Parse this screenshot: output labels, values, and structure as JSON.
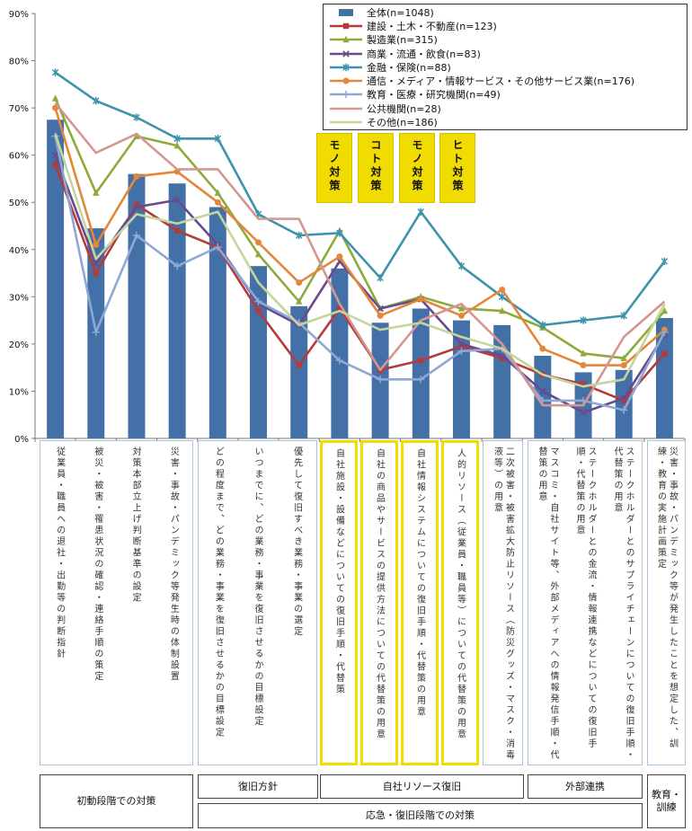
{
  "chart_data": {
    "type": "bar",
    "title": "",
    "xlabel": "",
    "ylabel": "",
    "ylim": [
      0,
      90
    ],
    "yticks": [
      "0%",
      "10%",
      "20%",
      "30%",
      "40%",
      "50%",
      "60%",
      "70%",
      "80%",
      "90%"
    ],
    "grid": false,
    "legend_position": "top-right",
    "categories": [
      "災害・事故・パンデミック等発生時の体制設置",
      "対策本部立上げ判断基準の設定",
      "被災・被害・罹患状況の確認・連絡手順の策定",
      "従業員・職員への退社・出勤等の判断指針",
      "優先して復旧すべき業務・事業の選定",
      "いつまでに、どの業務・事業を復旧させるかの目標設定",
      "どの程度まで、どの業務・事業を復旧させるかの目標設定",
      "自社施設・設備などについての復旧手順・代替策",
      "自社の商品やサービスの提供方法についての代替策の用意",
      "自社情報システムについての復旧手順・代替策の用意",
      "人的リソース（従業員・職員等）についての代替策の用意",
      "二次被害・被害拡大防止リソース（防災グッズ・マスク・消毒液等）の用意",
      "ステークホルダーとのサプライチェーンについての復旧手順・代替策の用意",
      "ステークホルダーとの金流・情報連携などについての復旧手順・代替策の用意",
      "マスコミ・自社サイト等、外部メディアへの情報発信手順・代替策の用意",
      "災害・事故・パンデミック等が発生したことを想定した、訓練・教育の実施計画策定"
    ],
    "series": [
      {
        "name": "全体(n=1048)",
        "type": "bar",
        "color": "#4470a8",
        "values": [
          67.5,
          44.5,
          56,
          54,
          49,
          36.5,
          28,
          36,
          24.5,
          27.5,
          25,
          24,
          17.5,
          14,
          14.5,
          25.5
        ]
      },
      {
        "name": "建設・土木・不動産(n=123)",
        "color": "#b23c3c",
        "marker": "square",
        "values": [
          58,
          35,
          49.5,
          44,
          40.5,
          27,
          15.5,
          27.5,
          14.5,
          16.5,
          19.5,
          17,
          13.5,
          11.5,
          8,
          18
        ]
      },
      {
        "name": "製造業(n=315)",
        "color": "#8faa3c",
        "marker": "triangle",
        "values": [
          72,
          52,
          64,
          62,
          52,
          39,
          29,
          44,
          27.5,
          30,
          27.5,
          27,
          23.5,
          18,
          17,
          27
        ]
      },
      {
        "name": "商業・流通・飲食(n=83)",
        "color": "#6a4a8c",
        "marker": "x",
        "values": [
          60,
          37,
          49,
          50.5,
          41,
          28.5,
          24,
          37.5,
          27.5,
          29.5,
          20,
          17.5,
          10,
          5.5,
          8.5,
          22
        ]
      },
      {
        "name": "金融・保険(n=88)",
        "color": "#3c93ab",
        "marker": "star",
        "values": [
          77.5,
          71.5,
          68,
          63.5,
          63.5,
          47.5,
          43,
          43.5,
          34,
          48,
          36.5,
          30,
          24,
          25,
          26,
          37.5
        ]
      },
      {
        "name": "通信・メディア・情報サービス・その他サービス業(n=176)",
        "color": "#e2873b",
        "marker": "circle",
        "values": [
          70,
          41,
          55.5,
          56.5,
          50,
          41.5,
          33,
          38.5,
          26,
          29.5,
          26,
          31.5,
          19,
          15.5,
          15.5,
          23
        ]
      },
      {
        "name": "教育・医療・研究機関(n=49)",
        "color": "#8ea8d4",
        "marker": "plus",
        "values": [
          64,
          22.5,
          43,
          36.5,
          40.5,
          29,
          24.5,
          16.5,
          12.5,
          12.5,
          18.5,
          19,
          8,
          8,
          6,
          22.5
        ]
      },
      {
        "name": "公共機関(n=28)",
        "color": "#d59692",
        "marker": "none",
        "values": [
          71,
          60.5,
          64.5,
          57,
          57,
          46.5,
          46.5,
          28.5,
          14.5,
          25,
          28.5,
          20,
          7,
          7,
          21.5,
          29
        ]
      },
      {
        "name": "その他(n=186)",
        "color": "#c3d69b",
        "marker": "none",
        "values": [
          64.5,
          38,
          47.5,
          45.5,
          48,
          33,
          24,
          27,
          23,
          24.5,
          21.5,
          19,
          13.5,
          11,
          12.5,
          28.5
        ]
      }
    ]
  },
  "highlight_tags": [
    "モノ対策",
    "コト対策",
    "モノ対策",
    "ヒト対策"
  ],
  "groups": {
    "initial": "初動段階での対策",
    "policy": "復旧方針",
    "resources": "自社リソース復旧",
    "external": "外部連携",
    "response": "応急・復旧段階での対策",
    "training": "教育・訓練"
  }
}
